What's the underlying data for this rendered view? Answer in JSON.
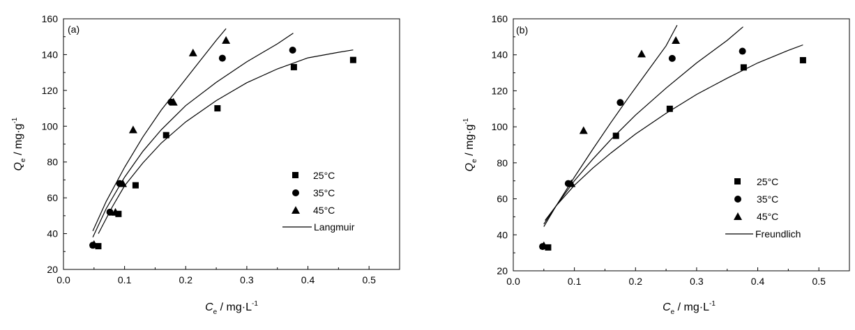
{
  "chart_data": [
    {
      "type": "scatter",
      "panel_label": "(a)",
      "xlabel": {
        "main": "C",
        "sub": "e",
        "unit": " / mg·L",
        "sup": "-1"
      },
      "ylabel": {
        "main": "Q",
        "sub": "e",
        "unit": " / mg·g",
        "sup": "-1"
      },
      "xlim": [
        0.0,
        0.55
      ],
      "ylim": [
        20,
        160
      ],
      "xticks": [
        0.0,
        0.1,
        0.2,
        0.3,
        0.4,
        0.5
      ],
      "xtick_labels": [
        "0.0",
        "0.1",
        "0.2",
        "0.3",
        "0.4",
        "0.5"
      ],
      "yticks": [
        20,
        40,
        60,
        80,
        100,
        120,
        140,
        160
      ],
      "ytick_labels": [
        "20",
        "40",
        "60",
        "80",
        "100",
        "120",
        "140",
        "160"
      ],
      "legend_position": "bottom-right",
      "series": [
        {
          "name": "25",
          "unit": "°C",
          "marker": "square",
          "x": [
            0.057,
            0.09,
            0.118,
            0.168,
            0.252,
            0.377,
            0.474
          ],
          "y": [
            33,
            51,
            67,
            95,
            110,
            133,
            137
          ]
        },
        {
          "name": "35",
          "unit": "°C",
          "marker": "circle",
          "x": [
            0.048,
            0.076,
            0.092,
            0.176,
            0.26,
            0.375
          ],
          "y": [
            33.5,
            52,
            68,
            113.5,
            138,
            142.5
          ]
        },
        {
          "name": "45",
          "unit": "°C",
          "marker": "triangle",
          "x": [
            0.05,
            0.085,
            0.097,
            0.114,
            0.18,
            0.212,
            0.266
          ],
          "y": [
            34,
            52,
            68,
            98,
            113.5,
            141,
            148
          ]
        }
      ],
      "fit_label": "Langmuir",
      "fits": [
        {
          "series": "25",
          "x": [
            0.057,
            0.08,
            0.1,
            0.13,
            0.16,
            0.2,
            0.25,
            0.3,
            0.35,
            0.4,
            0.45,
            0.474
          ],
          "y": [
            40,
            55,
            66.7,
            79.5,
            90.6,
            102.4,
            114.3,
            124.3,
            132,
            138.2,
            141.3,
            142.6
          ]
        },
        {
          "series": "35",
          "x": [
            0.048,
            0.07,
            0.1,
            0.13,
            0.16,
            0.2,
            0.25,
            0.3,
            0.35,
            0.376
          ],
          "y": [
            38,
            54,
            71.5,
            86,
            98,
            111.5,
            124.5,
            136,
            146,
            152
          ]
        },
        {
          "series": "45",
          "x": [
            0.048,
            0.07,
            0.1,
            0.13,
            0.16,
            0.19,
            0.22,
            0.25,
            0.266
          ],
          "y": [
            41.5,
            58,
            77,
            94,
            109,
            122,
            135,
            148,
            154.5
          ]
        }
      ]
    },
    {
      "type": "scatter",
      "panel_label": "(b)",
      "xlabel": {
        "main": "C",
        "sub": "e",
        "unit": " / mg·L",
        "sup": "-1"
      },
      "ylabel": {
        "main": "Q",
        "sub": "e",
        "unit": " / mg·g",
        "sup": "-1"
      },
      "xlim": [
        0.0,
        0.55
      ],
      "ylim": [
        20,
        160
      ],
      "xticks": [
        0.0,
        0.1,
        0.2,
        0.3,
        0.4,
        0.5
      ],
      "xtick_labels": [
        "0.0",
        "0.1",
        "0.2",
        "0.3",
        "0.4",
        "0.5"
      ],
      "yticks": [
        20,
        40,
        60,
        80,
        100,
        120,
        140,
        160
      ],
      "ytick_labels": [
        "20",
        "40",
        "60",
        "80",
        "100",
        "120",
        "140",
        "160"
      ],
      "legend_position": "bottom-right",
      "series": [
        {
          "name": "25",
          "unit": "°C",
          "marker": "square",
          "x": [
            0.057,
            0.168,
            0.256,
            0.377,
            0.474
          ],
          "y": [
            33,
            95,
            110,
            133,
            137
          ]
        },
        {
          "name": "35",
          "unit": "°C",
          "marker": "circle",
          "x": [
            0.048,
            0.09,
            0.175,
            0.26,
            0.375
          ],
          "y": [
            33.5,
            68.5,
            113.5,
            138,
            142
          ]
        },
        {
          "name": "45",
          "unit": "°C",
          "marker": "triangle",
          "x": [
            0.05,
            0.095,
            0.115,
            0.21,
            0.266
          ],
          "y": [
            34,
            68.5,
            98,
            140.5,
            148
          ]
        }
      ],
      "fit_label": "Freundlich",
      "fits": [
        {
          "series": "25",
          "x": [
            0.052,
            0.07,
            0.1,
            0.13,
            0.16,
            0.2,
            0.25,
            0.3,
            0.35,
            0.4,
            0.45,
            0.474
          ],
          "y": [
            48,
            56,
            67.5,
            77,
            85.5,
            96,
            107.5,
            118,
            127,
            135.5,
            142.5,
            145.5
          ]
        },
        {
          "series": "35",
          "x": [
            0.05,
            0.07,
            0.1,
            0.13,
            0.16,
            0.2,
            0.25,
            0.3,
            0.35,
            0.376
          ],
          "y": [
            46,
            56,
            70,
            82,
            93,
            106.5,
            121.5,
            135.5,
            148,
            155.5
          ]
        },
        {
          "series": "45",
          "x": [
            0.05,
            0.07,
            0.1,
            0.13,
            0.16,
            0.19,
            0.22,
            0.25,
            0.268
          ],
          "y": [
            44.5,
            56,
            72,
            87.5,
            102.5,
            117,
            131,
            145,
            156.5
          ]
        }
      ]
    }
  ]
}
